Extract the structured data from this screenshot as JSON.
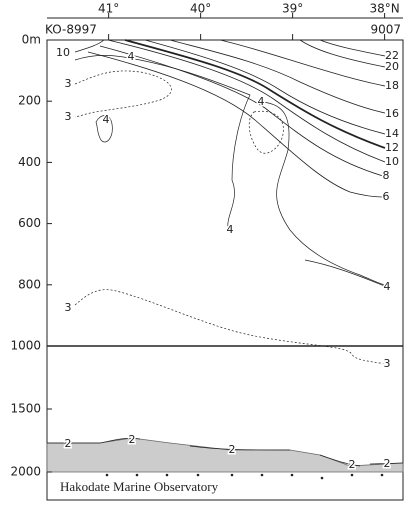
{
  "chart_data": {
    "type": "contour",
    "xlim": [
      41.67,
      37.8
    ],
    "xticks": [
      {
        "value": 41,
        "label": "41°"
      },
      {
        "value": 40,
        "label": "40°"
      },
      {
        "value": 39,
        "label": "39°"
      },
      {
        "value": 38,
        "label": "38°N"
      }
    ],
    "stations": [
      "KO-8997",
      "9007"
    ],
    "ylim": [
      0,
      1000
    ],
    "yticks": [
      {
        "value": 0,
        "label": "0m"
      },
      200,
      400,
      600,
      800,
      1000
    ],
    "y2lim": [
      1000,
      2000
    ],
    "y2ticks": [
      1500,
      2000
    ],
    "contour_labels": [
      10,
      4,
      3,
      3,
      4,
      4,
      22,
      20,
      18,
      16,
      14,
      12,
      10,
      8,
      6,
      4,
      4,
      3,
      3,
      2,
      2,
      2,
      2,
      2
    ],
    "credit": "Hakodate Marine Observatory"
  }
}
